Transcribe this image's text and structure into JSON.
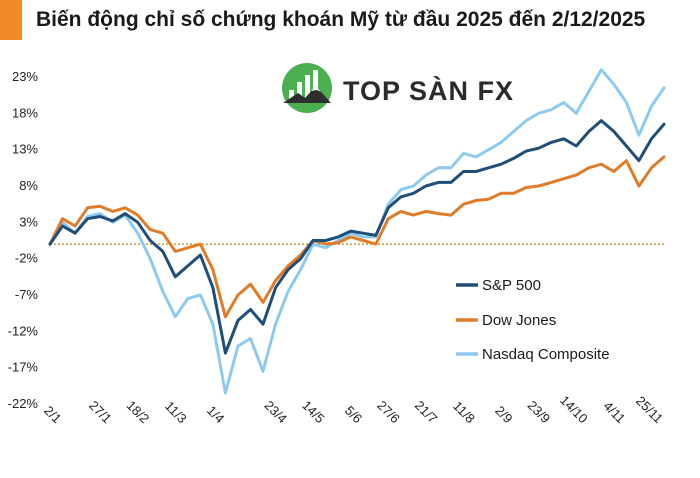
{
  "header": {
    "title": "Biến động chỉ số chứng khoán Mỹ từ đầu 2025 đến 2/12/2025",
    "accent_color": "#f08a24"
  },
  "logo": {
    "text": "TOP SÀN FX",
    "icon": "mountain-bars-logo-icon",
    "color": "#4caf50"
  },
  "chart_data": {
    "type": "line",
    "title": "Biến động chỉ số chứng khoán Mỹ từ đầu 2025 đến 2/12/2025",
    "ylim": [
      -22,
      23
    ],
    "yticks": [
      23,
      18,
      13,
      8,
      3,
      -2,
      -7,
      -12,
      -17,
      -22
    ],
    "ytick_labels": [
      "23%",
      "18%",
      "13%",
      "8%",
      "3%",
      "-2%",
      "-7%",
      "-12%",
      "-17%",
      "-22%"
    ],
    "xtick_labels": [
      "2/1",
      "27/1",
      "18/2",
      "11/3",
      "1/4",
      "23/4",
      "14/5",
      "5/6",
      "27/6",
      "21/7",
      "11/8",
      "2/9",
      "23/9",
      "14/10",
      "4/11",
      "25/11"
    ],
    "x": [
      "2/1",
      "7/1",
      "14/1",
      "20/1",
      "27/1",
      "3/2",
      "10/2",
      "18/2",
      "25/2",
      "3/3",
      "11/3",
      "17/3",
      "24/3",
      "1/4",
      "4/4",
      "8/4",
      "9/4",
      "15/4",
      "23/4",
      "30/4",
      "7/5",
      "14/5",
      "21/5",
      "28/5",
      "5/6",
      "12/6",
      "19/6",
      "27/6",
      "3/7",
      "11/7",
      "21/7",
      "28/7",
      "4/8",
      "11/8",
      "18/8",
      "25/8",
      "2/9",
      "9/9",
      "16/9",
      "23/9",
      "30/9",
      "7/10",
      "14/10",
      "21/10",
      "28/10",
      "4/11",
      "10/11",
      "18/11",
      "25/11",
      "2/12"
    ],
    "baseline": 0,
    "grid": false,
    "legend_position": "bottom-right",
    "series": [
      {
        "name": "S&P 500",
        "color": "#1f4e79",
        "values": [
          0,
          2.5,
          1.5,
          3.5,
          3.8,
          3.2,
          4.2,
          3.0,
          0.5,
          -1.0,
          -4.5,
          -3.0,
          -1.5,
          -6.0,
          -15.0,
          -10.5,
          -9.0,
          -11.0,
          -6.0,
          -3.5,
          -2.0,
          0.5,
          0.5,
          1.0,
          1.8,
          1.5,
          1.2,
          5.0,
          6.5,
          7.0,
          8.0,
          8.5,
          8.5,
          10.0,
          10.0,
          10.5,
          11.0,
          11.8,
          12.8,
          13.2,
          14.0,
          14.5,
          13.5,
          15.5,
          17.0,
          15.5,
          13.5,
          11.5,
          14.5,
          16.5
        ]
      },
      {
        "name": "Dow Jones",
        "color": "#e07b2a",
        "values": [
          0,
          3.5,
          2.5,
          5.0,
          5.2,
          4.5,
          5.0,
          4.0,
          2.0,
          1.5,
          -1.0,
          -0.5,
          0.0,
          -3.5,
          -10.0,
          -7.0,
          -5.5,
          -8.0,
          -5.0,
          -3.0,
          -1.5,
          0.5,
          0.0,
          0.2,
          1.0,
          0.5,
          0.0,
          3.5,
          4.5,
          4.0,
          4.5,
          4.2,
          4.0,
          5.5,
          6.0,
          6.2,
          7.0,
          7.0,
          7.8,
          8.0,
          8.5,
          9.0,
          9.5,
          10.5,
          11.0,
          10.0,
          11.5,
          8.0,
          10.5,
          12.0
        ]
      },
      {
        "name": "Nasdaq Composite",
        "color": "#8ec9ef",
        "values": [
          0,
          3.0,
          1.5,
          3.8,
          4.2,
          3.0,
          4.0,
          1.5,
          -2.0,
          -6.5,
          -10.0,
          -7.5,
          -7.0,
          -11.0,
          -20.5,
          -14.0,
          -13.0,
          -17.5,
          -11.0,
          -6.5,
          -3.5,
          0.0,
          -0.5,
          0.5,
          1.5,
          1.0,
          1.0,
          5.5,
          7.5,
          8.0,
          9.5,
          10.5,
          10.5,
          12.5,
          12.0,
          13.0,
          14.0,
          15.5,
          17.0,
          18.0,
          18.5,
          19.5,
          18.0,
          21.0,
          24.0,
          22.0,
          19.5,
          15.0,
          19.0,
          21.5
        ]
      }
    ]
  }
}
